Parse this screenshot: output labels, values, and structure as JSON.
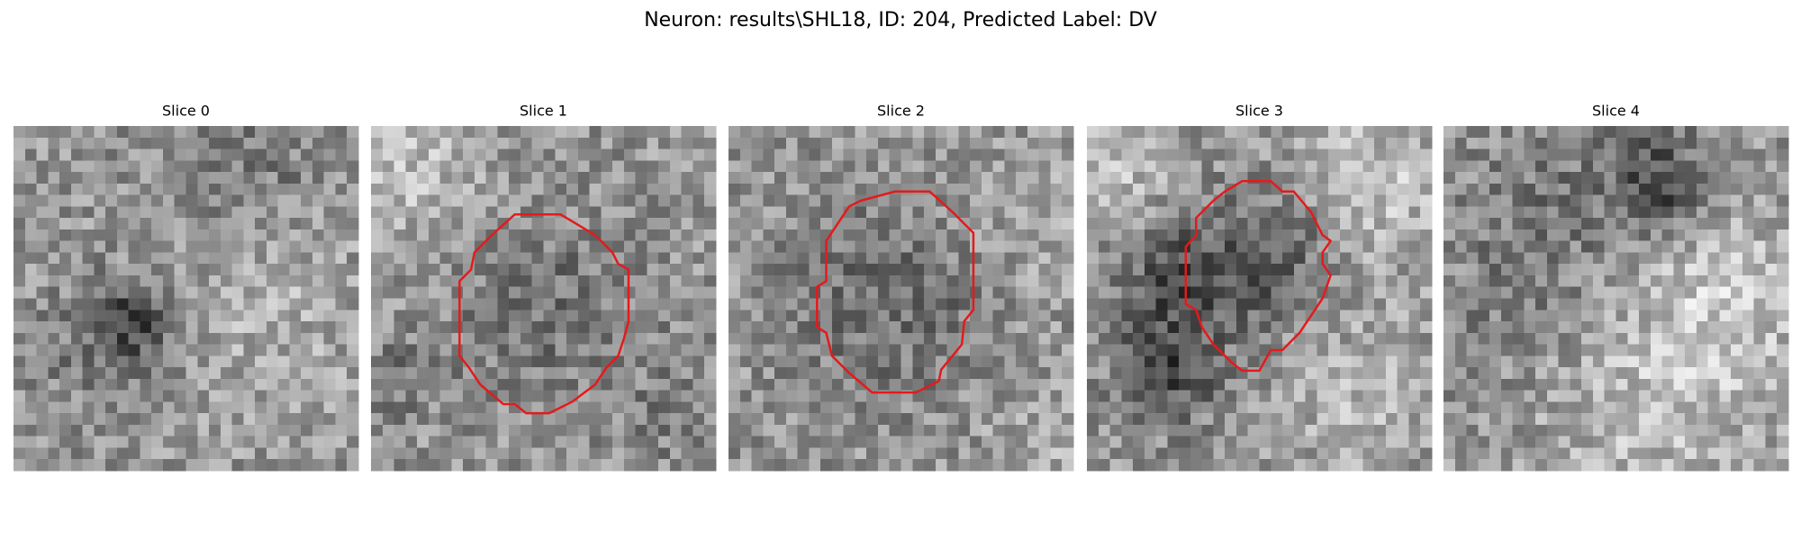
{
  "title": "Neuron: results\\SHL18, ID: 204, Predicted Label: DV",
  "panels": [
    {
      "title": "Slice 0"
    },
    {
      "title": "Slice 1"
    },
    {
      "title": "Slice 2"
    },
    {
      "title": "Slice 3"
    },
    {
      "title": "Slice 4"
    }
  ]
}
